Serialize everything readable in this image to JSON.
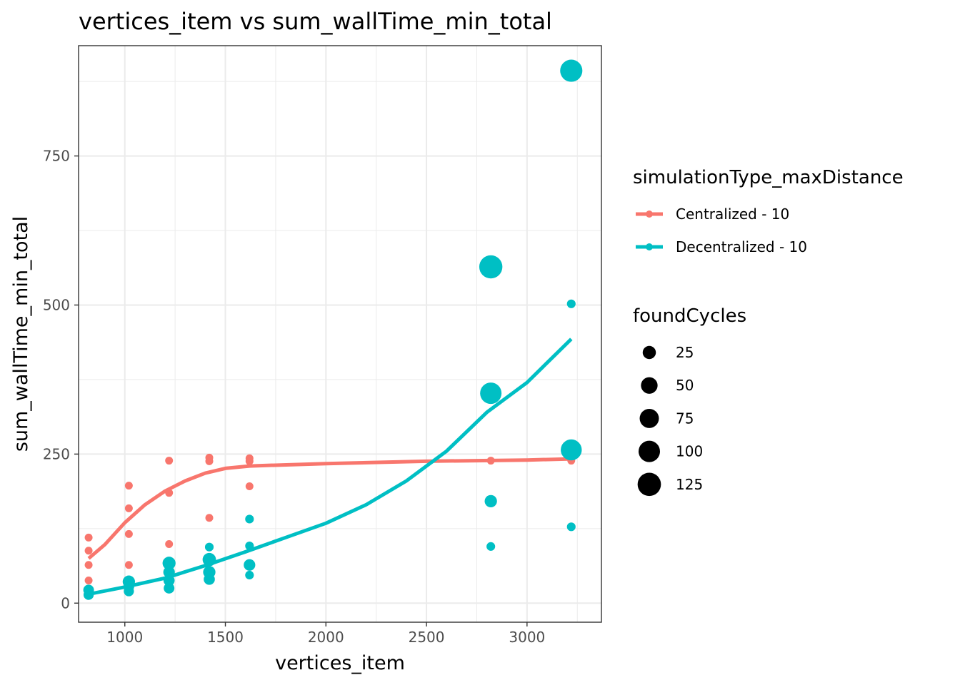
{
  "chart_data": {
    "type": "scatter",
    "title": "vertices_item  vs  sum_wallTime_min_total",
    "xlabel": "vertices_item",
    "ylabel": "sum_wallTime_min_total",
    "xlim": [
      770,
      3370
    ],
    "ylim": [
      -32,
      935
    ],
    "x_ticks": [
      1000,
      1500,
      2000,
      2500,
      3000
    ],
    "y_ticks": [
      0,
      250,
      500,
      750
    ],
    "grid": true,
    "legend_color_title": "simulationType_maxDistance",
    "legend_size_title": "foundCycles",
    "size_legend": [
      {
        "label": "25",
        "value": 25
      },
      {
        "label": "50",
        "value": 50
      },
      {
        "label": "75",
        "value": 75
      },
      {
        "label": "100",
        "value": 100
      },
      {
        "label": "125",
        "value": 125
      }
    ],
    "series": [
      {
        "name": "Centralized - 10",
        "color": "#F8766D",
        "points": [
          {
            "x": 820,
            "y": 110,
            "size": 3
          },
          {
            "x": 820,
            "y": 88,
            "size": 3
          },
          {
            "x": 820,
            "y": 64,
            "size": 3
          },
          {
            "x": 820,
            "y": 38,
            "size": 3
          },
          {
            "x": 1020,
            "y": 197,
            "size": 3
          },
          {
            "x": 1020,
            "y": 159,
            "size": 3
          },
          {
            "x": 1020,
            "y": 116,
            "size": 3
          },
          {
            "x": 1020,
            "y": 64,
            "size": 3
          },
          {
            "x": 1220,
            "y": 239,
            "size": 3
          },
          {
            "x": 1220,
            "y": 185,
            "size": 3
          },
          {
            "x": 1220,
            "y": 99,
            "size": 3
          },
          {
            "x": 1420,
            "y": 244,
            "size": 3
          },
          {
            "x": 1420,
            "y": 238,
            "size": 3
          },
          {
            "x": 1420,
            "y": 143,
            "size": 3
          },
          {
            "x": 1620,
            "y": 243,
            "size": 3
          },
          {
            "x": 1620,
            "y": 238,
            "size": 3
          },
          {
            "x": 1620,
            "y": 196,
            "size": 3
          },
          {
            "x": 2820,
            "y": 239,
            "size": 3
          },
          {
            "x": 3220,
            "y": 239,
            "size": 3
          }
        ],
        "smooth": [
          {
            "x": 820,
            "y": 75
          },
          {
            "x": 900,
            "y": 98
          },
          {
            "x": 1000,
            "y": 135
          },
          {
            "x": 1100,
            "y": 165
          },
          {
            "x": 1200,
            "y": 188
          },
          {
            "x": 1300,
            "y": 205
          },
          {
            "x": 1400,
            "y": 218
          },
          {
            "x": 1500,
            "y": 226
          },
          {
            "x": 1620,
            "y": 230
          },
          {
            "x": 2000,
            "y": 234
          },
          {
            "x": 2500,
            "y": 238
          },
          {
            "x": 3000,
            "y": 240
          },
          {
            "x": 3220,
            "y": 242
          }
        ]
      },
      {
        "name": "Decentralized - 10",
        "color": "#00BFC4",
        "points": [
          {
            "x": 820,
            "y": 22,
            "size": 12
          },
          {
            "x": 820,
            "y": 14,
            "size": 10
          },
          {
            "x": 1020,
            "y": 36,
            "size": 20
          },
          {
            "x": 1020,
            "y": 28,
            "size": 12
          },
          {
            "x": 1020,
            "y": 20,
            "size": 10
          },
          {
            "x": 1220,
            "y": 67,
            "size": 24
          },
          {
            "x": 1220,
            "y": 52,
            "size": 16
          },
          {
            "x": 1220,
            "y": 38,
            "size": 14
          },
          {
            "x": 1220,
            "y": 25,
            "size": 12
          },
          {
            "x": 1420,
            "y": 94,
            "size": 5
          },
          {
            "x": 1420,
            "y": 73,
            "size": 26
          },
          {
            "x": 1420,
            "y": 52,
            "size": 20
          },
          {
            "x": 1420,
            "y": 40,
            "size": 14
          },
          {
            "x": 1620,
            "y": 141,
            "size": 5
          },
          {
            "x": 1620,
            "y": 96,
            "size": 5
          },
          {
            "x": 1620,
            "y": 64,
            "size": 16
          },
          {
            "x": 1620,
            "y": 47,
            "size": 5
          },
          {
            "x": 2820,
            "y": 564,
            "size": 122
          },
          {
            "x": 2820,
            "y": 352,
            "size": 100
          },
          {
            "x": 2820,
            "y": 171,
            "size": 20
          },
          {
            "x": 2820,
            "y": 95,
            "size": 5
          },
          {
            "x": 3220,
            "y": 893,
            "size": 110
          },
          {
            "x": 3220,
            "y": 502,
            "size": 5
          },
          {
            "x": 3220,
            "y": 257,
            "size": 95
          },
          {
            "x": 3220,
            "y": 128,
            "size": 5
          }
        ],
        "smooth": [
          {
            "x": 820,
            "y": 15
          },
          {
            "x": 1000,
            "y": 27
          },
          {
            "x": 1200,
            "y": 42
          },
          {
            "x": 1400,
            "y": 63
          },
          {
            "x": 1600,
            "y": 86
          },
          {
            "x": 1800,
            "y": 110
          },
          {
            "x": 2000,
            "y": 134
          },
          {
            "x": 2200,
            "y": 165
          },
          {
            "x": 2400,
            "y": 205
          },
          {
            "x": 2600,
            "y": 255
          },
          {
            "x": 2800,
            "y": 320
          },
          {
            "x": 3000,
            "y": 370
          },
          {
            "x": 3220,
            "y": 443
          }
        ]
      }
    ]
  }
}
